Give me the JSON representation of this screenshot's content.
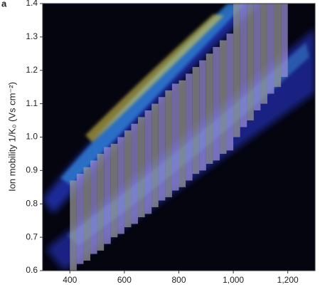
{
  "chart_data": {
    "type": "window",
    "panel_label": "a",
    "y_label": "Ion mobility 1/K₀ (Vs cm⁻²)",
    "xlim": [
      300,
      1300
    ],
    "xticks": [
      400,
      600,
      800,
      {
        "value": 1000,
        "label": "1,000"
      },
      {
        "value": 1200,
        "label": "1,200"
      }
    ],
    "ylim": [
      0.6,
      1.4
    ],
    "yticks": [
      0.6,
      0.7,
      0.8,
      0.9,
      {
        "value": 1,
        "label": "1.0"
      },
      1.1,
      1.2,
      1.3,
      1.4
    ],
    "colors": [
      "#9a9a9a",
      "#9a8fd6"
    ],
    "windows": {
      "x": [
        400,
        425,
        450,
        475,
        500,
        525,
        550,
        575,
        600,
        625,
        650,
        675,
        700,
        725,
        750,
        775,
        800,
        825,
        850,
        875,
        900,
        925,
        950,
        975,
        1000,
        1025,
        1050,
        1075,
        1100,
        1125,
        1150,
        1175
      ],
      "low": [
        0.6,
        0.62,
        0.63,
        0.65,
        0.66,
        0.68,
        0.7,
        0.71,
        0.73,
        0.74,
        0.76,
        0.77,
        0.79,
        0.81,
        0.82,
        0.84,
        0.85,
        0.87,
        0.89,
        0.9,
        0.92,
        0.93,
        0.95,
        0.96,
        1.0,
        1.03,
        1.05,
        1.08,
        1.1,
        1.13,
        1.15,
        1.18
      ],
      "high": [
        0.87,
        0.89,
        0.91,
        0.93,
        0.95,
        0.97,
        0.98,
        1.0,
        1.02,
        1.04,
        1.06,
        1.08,
        1.1,
        1.12,
        1.14,
        1.16,
        1.17,
        1.19,
        1.21,
        1.23,
        1.25,
        1.27,
        1.29,
        1.31,
        1.4,
        1.4,
        1.4,
        1.4,
        1.4,
        1.4,
        1.4,
        1.4
      ]
    }
  }
}
